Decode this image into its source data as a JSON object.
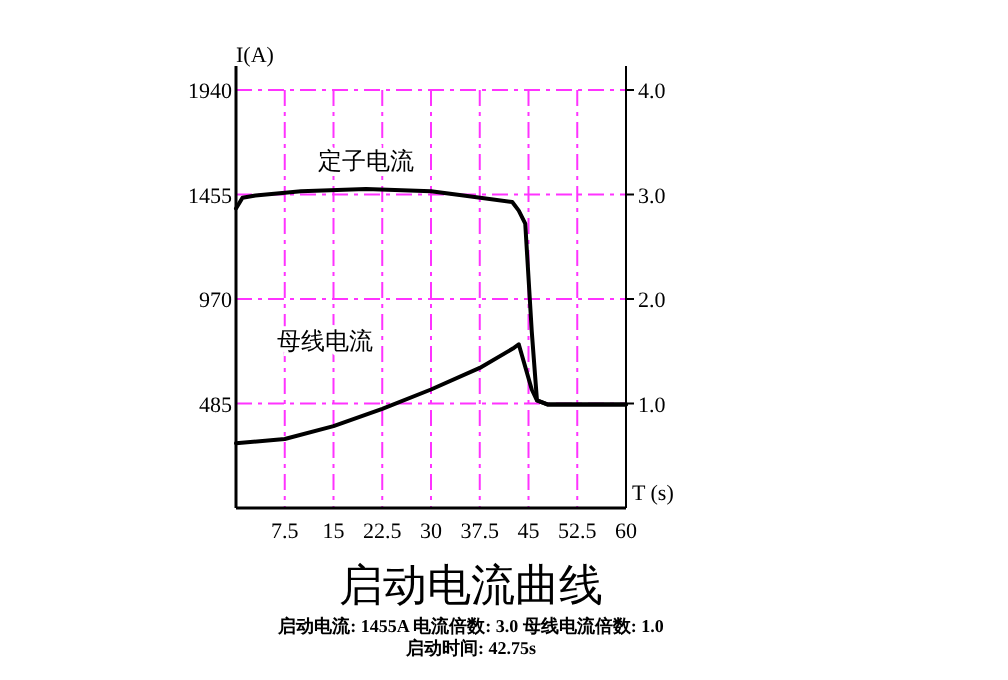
{
  "chart_data": {
    "type": "line",
    "title": "启动电流曲线",
    "xlabel": "T (s)",
    "ylabel": "I(A)",
    "xlim": [
      0,
      60
    ],
    "xticks": [
      7.5,
      15,
      22.5,
      30,
      37.5,
      45,
      52.5,
      60
    ],
    "ylim": [
      0,
      1940
    ],
    "yticks": [
      485,
      970,
      1455,
      1940
    ],
    "y2lim": [
      0,
      4
    ],
    "y2ticks": [
      {
        "value": 1,
        "label": "1.0"
      },
      {
        "value": 2,
        "label": "2.0"
      },
      {
        "value": 3,
        "label": "3.0"
      },
      {
        "value": 4,
        "label": "4.0"
      }
    ],
    "grid": true,
    "line_style": "solid",
    "marker": "none",
    "annotations": [
      "启动电流: 1455A  电流倍数: 3.0  母线电流倍数: 1.0",
      "启动时间: 42.75s"
    ],
    "series": [
      {
        "name": "定子电流",
        "color": "#000000",
        "x": [
          0,
          1,
          3,
          10,
          20,
          30,
          35,
          42.5,
          43.5,
          44.5,
          45.5,
          46.3,
          48,
          60
        ],
        "values": [
          1390,
          1440,
          1450,
          1470,
          1480,
          1470,
          1450,
          1420,
          1380,
          1320,
          820,
          500,
          480,
          480
        ]
      },
      {
        "name": "母线电流",
        "color": "#000000",
        "x": [
          0,
          7.5,
          15,
          22.5,
          30,
          37.5,
          42.6,
          43.5,
          45.5,
          46.3,
          48,
          60
        ],
        "values": [
          300,
          320,
          380,
          460,
          550,
          650,
          740,
          760,
          550,
          500,
          480,
          480
        ]
      }
    ]
  }
}
